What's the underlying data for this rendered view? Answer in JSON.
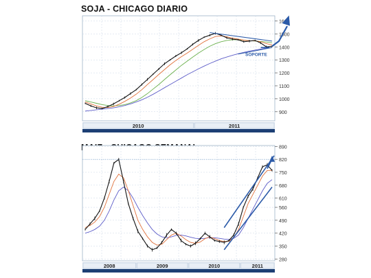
{
  "colors": {
    "price": "#111111",
    "ma_short": "#e0703a",
    "ma_mid": "#6ab04c",
    "ma_long": "#5c5cc8",
    "trend": "#2b5aa8",
    "arrow": "#2b5aa8",
    "grid": "#c8d6e6",
    "axis_bar": "#1c3f74",
    "axis_label_bg": "#dde6f0"
  },
  "chart_data": [
    {
      "type": "line",
      "title": "SOJA - CHICAGO DIARIO",
      "ylim": [
        830,
        1640
      ],
      "yticks": [
        900,
        1000,
        1100,
        1200,
        1300,
        1400,
        1500,
        1600
      ],
      "x_labels": [
        "2010",
        "2011"
      ],
      "annotations": [
        "SOPORTE"
      ],
      "grid": true,
      "approximate_series_note": "",
      "series": [
        {
          "role": "price",
          "values": [
            965,
            945,
            930,
            925,
            940,
            960,
            985,
            1010,
            1040,
            1070,
            1110,
            1150,
            1190,
            1230,
            1270,
            1300,
            1330,
            1355,
            1385,
            1420,
            1450,
            1475,
            1490,
            1505,
            1490,
            1470,
            1460,
            1455,
            1440,
            1445,
            1450,
            1430,
            1400,
            1405
          ]
        },
        {
          "role": "ma_short",
          "values": [
            975,
            960,
            945,
            935,
            932,
            940,
            958,
            980,
            1005,
            1035,
            1070,
            1110,
            1148,
            1188,
            1225,
            1262,
            1295,
            1325,
            1352,
            1382,
            1412,
            1440,
            1462,
            1480,
            1485,
            1478,
            1468,
            1460,
            1452,
            1448,
            1446,
            1440,
            1425,
            1415
          ]
        },
        {
          "role": "ma_mid",
          "values": [
            985,
            975,
            965,
            955,
            948,
            945,
            948,
            955,
            968,
            985,
            1010,
            1040,
            1075,
            1110,
            1148,
            1185,
            1222,
            1258,
            1290,
            1322,
            1352,
            1380,
            1405,
            1425,
            1440,
            1450,
            1455,
            1455,
            1452,
            1448,
            1445,
            1442,
            1438,
            1432
          ]
        },
        {
          "role": "ma_long",
          "values": [
            905,
            910,
            915,
            920,
            925,
            930,
            938,
            948,
            960,
            975,
            992,
            1012,
            1035,
            1060,
            1085,
            1110,
            1135,
            1160,
            1185,
            1208,
            1230,
            1252,
            1272,
            1290,
            1308,
            1322,
            1335,
            1347,
            1358,
            1368,
            1376,
            1384,
            1390,
            1395
          ]
        }
      ]
    },
    {
      "type": "line",
      "title": "MAIZ - CHICAGO SEMANAL",
      "ylim": [
        270,
        895
      ],
      "yticks": [
        280,
        350,
        420,
        490,
        560,
        610,
        680,
        750,
        820,
        890
      ],
      "x_labels": [
        "2008",
        "2009",
        "2010",
        "2011"
      ],
      "grid": true,
      "series": [
        {
          "role": "price",
          "values": [
            440,
            470,
            500,
            540,
            610,
            700,
            800,
            820,
            700,
            580,
            500,
            430,
            390,
            350,
            330,
            340,
            370,
            410,
            440,
            420,
            380,
            360,
            350,
            365,
            390,
            420,
            400,
            380,
            375,
            370,
            380,
            410,
            470,
            560,
            620,
            660,
            720,
            780,
            790,
            760
          ]
        },
        {
          "role": "ma_short",
          "values": [
            450,
            462,
            480,
            510,
            560,
            630,
            700,
            740,
            720,
            650,
            570,
            490,
            440,
            400,
            370,
            355,
            360,
            385,
            410,
            420,
            405,
            385,
            370,
            365,
            372,
            390,
            400,
            390,
            380,
            375,
            376,
            395,
            440,
            510,
            580,
            630,
            680,
            730,
            760,
            760
          ]
        },
        {
          "role": "ma_long",
          "values": [
            420,
            428,
            440,
            458,
            490,
            540,
            600,
            650,
            670,
            650,
            610,
            560,
            515,
            475,
            440,
            415,
            400,
            395,
            400,
            408,
            410,
            405,
            398,
            392,
            390,
            392,
            396,
            395,
            392,
            388,
            386,
            392,
            410,
            450,
            500,
            550,
            600,
            650,
            690,
            710
          ]
        }
      ]
    }
  ]
}
